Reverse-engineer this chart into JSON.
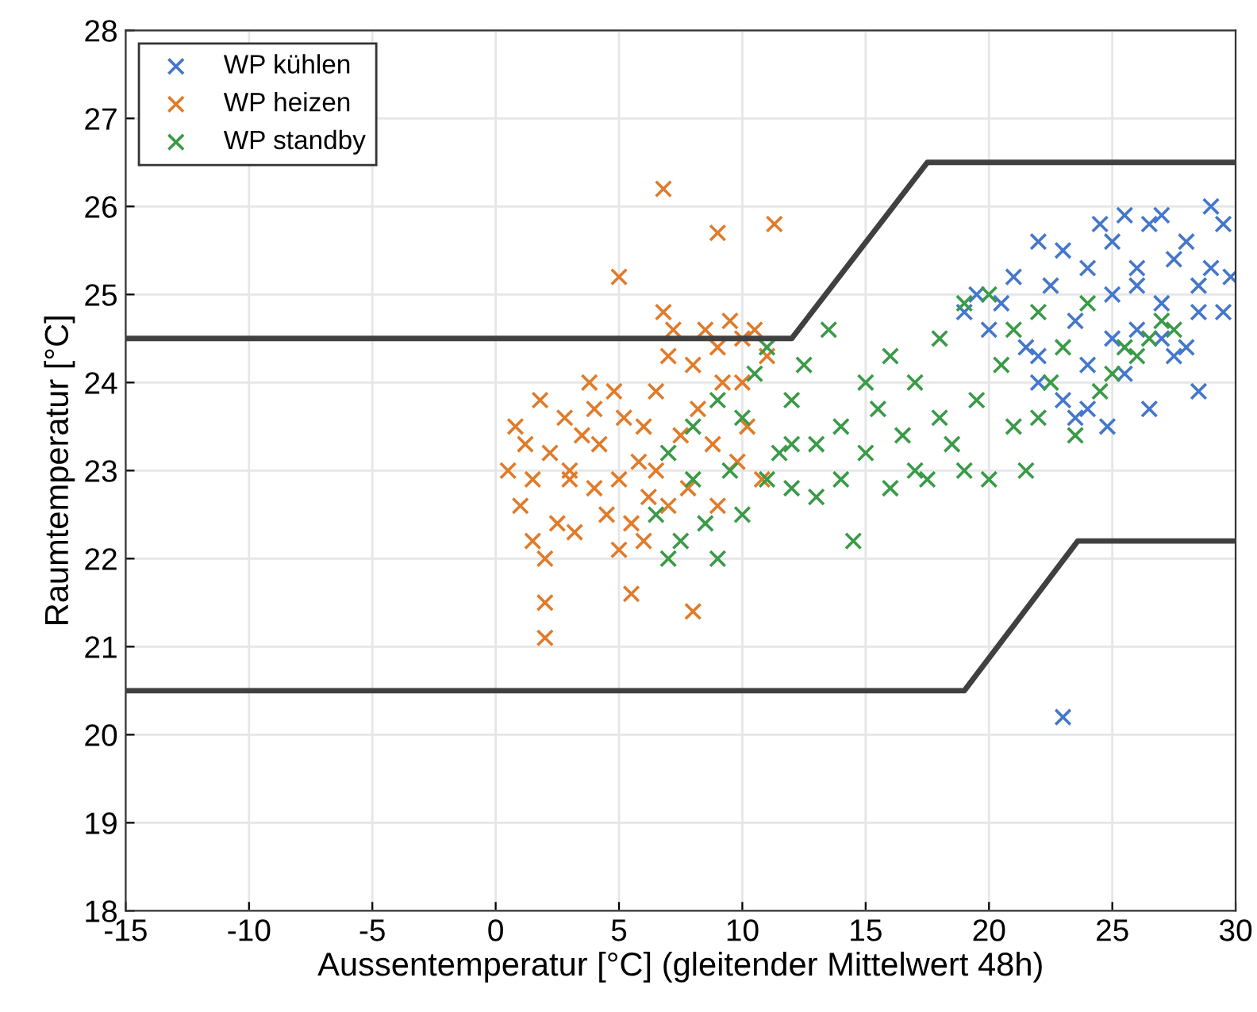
{
  "chart_data": {
    "type": "scatter",
    "xlabel": "Aussentemperatur [°C] (gleitender Mittelwert 48h)",
    "ylabel": "Raumtemperatur [°C]",
    "xlim": [
      -15,
      30
    ],
    "ylim": [
      18,
      28
    ],
    "xticks": [
      -15,
      -10,
      -5,
      0,
      5,
      10,
      15,
      20,
      25,
      30
    ],
    "yticks": [
      18,
      19,
      20,
      21,
      22,
      23,
      24,
      25,
      26,
      27,
      28
    ],
    "grid": true,
    "legend": "top left",
    "marker": "cross",
    "series": [
      {
        "name": "WP kühlen",
        "color": "#4477cc",
        "x": [
          19,
          19.5,
          20,
          20.5,
          21,
          21.5,
          22,
          22,
          22.5,
          23,
          23,
          23.5,
          23.5,
          24,
          24,
          24.5,
          24.8,
          25,
          25,
          25.5,
          25.5,
          26,
          26,
          26.5,
          26.5,
          27,
          27,
          27.5,
          27.5,
          28,
          28,
          28.5,
          28.5,
          29,
          29,
          29.5,
          29.5,
          29.8,
          23,
          22,
          24,
          25,
          26,
          27,
          28.5
        ],
        "values": [
          24.8,
          25.0,
          24.6,
          24.9,
          25.2,
          24.4,
          25.6,
          24.0,
          25.1,
          25.5,
          20.2,
          24.7,
          23.6,
          25.3,
          24.2,
          25.8,
          23.5,
          25.0,
          24.5,
          25.9,
          24.1,
          25.3,
          24.6,
          25.8,
          23.7,
          25.9,
          24.9,
          25.4,
          24.3,
          25.6,
          24.4,
          25.1,
          23.9,
          26.0,
          25.3,
          25.8,
          24.8,
          25.2,
          23.8,
          24.3,
          23.7,
          25.6,
          25.1,
          24.5,
          24.8
        ]
      },
      {
        "name": "WP heizen",
        "color": "#e07b2a",
        "x": [
          0.5,
          0.8,
          1,
          1.2,
          1.5,
          1.8,
          2,
          2,
          2,
          2.2,
          2.5,
          2.8,
          3,
          3.2,
          3.5,
          3.8,
          4,
          4.2,
          4.5,
          4.8,
          5,
          5,
          5.2,
          5.5,
          5.5,
          5.8,
          6,
          6.2,
          6.5,
          6.8,
          6.8,
          7,
          7,
          7.2,
          7.5,
          7.8,
          8,
          8,
          8.2,
          8.5,
          8.8,
          9,
          9,
          9.2,
          9.5,
          9.8,
          10,
          10.2,
          10.5,
          10.8,
          11,
          11.3,
          9,
          5,
          6.5,
          3,
          1.5,
          4,
          6,
          10
        ],
        "values": [
          23.0,
          23.5,
          22.6,
          23.3,
          22.2,
          23.8,
          21.1,
          21.5,
          22.0,
          23.2,
          22.4,
          23.6,
          22.9,
          22.3,
          23.4,
          24.0,
          22.8,
          23.3,
          22.5,
          23.9,
          25.2,
          22.9,
          23.6,
          21.6,
          22.4,
          23.1,
          23.5,
          22.7,
          23.0,
          26.2,
          24.8,
          24.3,
          22.6,
          24.6,
          23.4,
          22.8,
          21.4,
          24.2,
          23.7,
          24.6,
          23.3,
          25.7,
          24.4,
          24.0,
          24.7,
          23.1,
          24.5,
          23.5,
          24.6,
          22.9,
          24.3,
          25.8,
          22.6,
          22.1,
          23.9,
          23.0,
          22.9,
          23.7,
          22.2,
          24.0
        ]
      },
      {
        "name": "WP standby",
        "color": "#3a9a48",
        "x": [
          6.5,
          7,
          7,
          7.5,
          8,
          8,
          8.5,
          9,
          9,
          9.5,
          10,
          10,
          10.5,
          11,
          11,
          11.5,
          12,
          12,
          12.5,
          13,
          13,
          13.5,
          14,
          14,
          14.5,
          15,
          15,
          15.5,
          16,
          16,
          16.5,
          17,
          17,
          17.5,
          18,
          18,
          18.5,
          19,
          19,
          19.5,
          20,
          20,
          20.5,
          21,
          21,
          21.5,
          22,
          22,
          22.5,
          23,
          23.5,
          24,
          24.5,
          25,
          25.5,
          26,
          26.5,
          27,
          27.5,
          12
        ],
        "values": [
          22.5,
          22.0,
          23.2,
          22.2,
          22.9,
          23.5,
          22.4,
          23.8,
          22.0,
          23.0,
          23.6,
          22.5,
          24.1,
          22.9,
          24.4,
          23.2,
          23.8,
          22.8,
          24.2,
          23.3,
          22.7,
          24.6,
          23.5,
          22.9,
          22.2,
          24.0,
          23.2,
          23.7,
          22.8,
          24.3,
          23.4,
          23.0,
          24.0,
          22.9,
          23.6,
          24.5,
          23.3,
          24.9,
          23.0,
          23.8,
          25.0,
          22.9,
          24.2,
          23.5,
          24.6,
          23.0,
          24.8,
          23.6,
          24.0,
          24.4,
          23.4,
          24.9,
          23.9,
          24.1,
          24.4,
          24.3,
          24.5,
          24.7,
          24.6,
          23.3
        ]
      },
      {
        "type": "line",
        "marker": "none",
        "color": "#404040",
        "x": [
          -15,
          12,
          17.5,
          30
        ],
        "values": [
          24.5,
          24.5,
          26.5,
          26.5
        ]
      },
      {
        "type": "line",
        "marker": "none",
        "color": "#404040",
        "x": [
          -15,
          19,
          23.6,
          30
        ],
        "values": [
          20.5,
          20.5,
          22.2,
          22.2
        ]
      }
    ]
  }
}
